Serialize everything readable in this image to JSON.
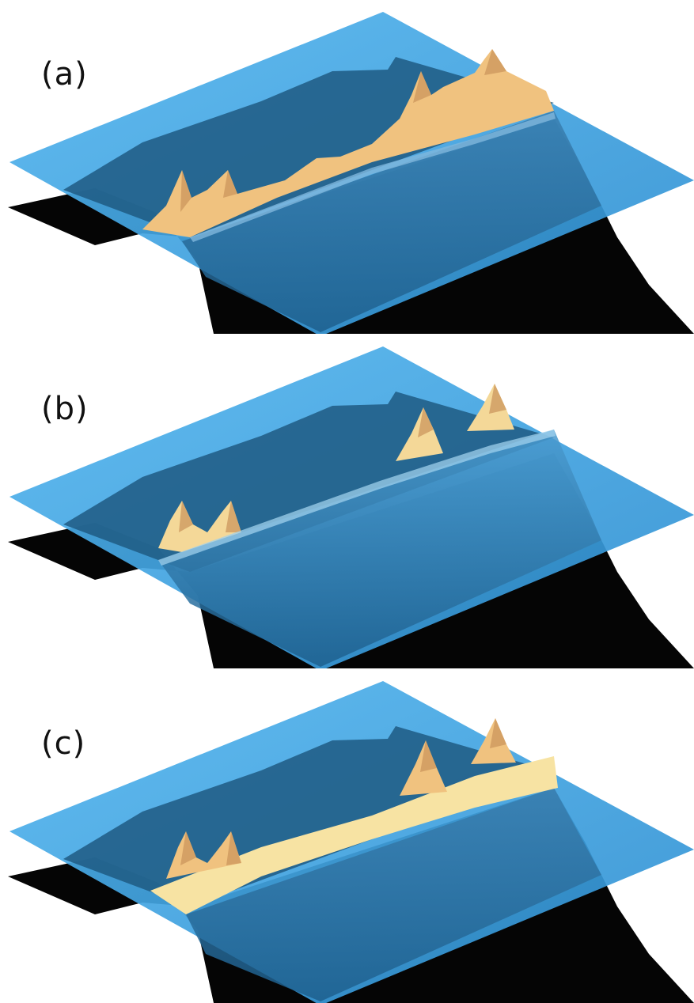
{
  "panels": [
    {
      "id": "a",
      "label": "(a)",
      "water_color": "#3fa7e6",
      "coast_color": "#f0c27f"
    },
    {
      "id": "b",
      "label": "(b)",
      "water_color": "#3fa7e6",
      "coast_color": "#f4d898"
    },
    {
      "id": "c",
      "label": "(c)",
      "water_color": "#3fa7e6",
      "coast_color": "#f7e3a3"
    }
  ]
}
